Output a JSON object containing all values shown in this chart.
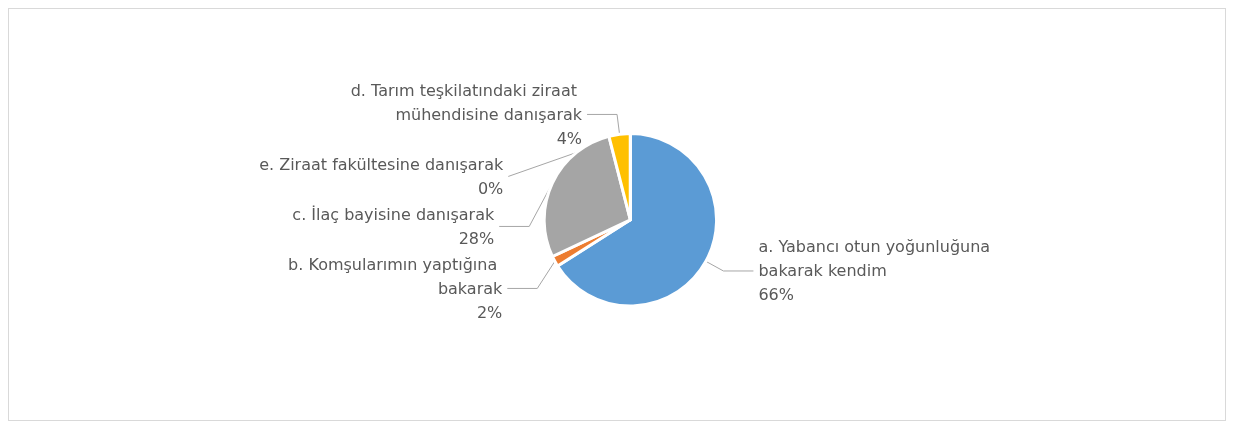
{
  "chart_data": {
    "type": "pie",
    "categories": [
      "a. Yabancı otun yoğunluğuna bakarak kendim",
      "b. Komşularımın yaptığına bakarak",
      "c. İlaç bayisine danışarak",
      "d. Tarım teşkilatındaki ziraat mühendisine danışarak",
      "e. Ziraat fakültesine danışarak"
    ],
    "values": [
      66,
      2,
      28,
      4,
      0
    ],
    "value_labels": [
      "66%",
      "2%",
      "28%",
      "4%",
      "0%"
    ],
    "colors": [
      "#5b9bd5",
      "#ed7d31",
      "#a5a5a5",
      "#ffc000",
      "#4472c4"
    ],
    "legend": false
  }
}
